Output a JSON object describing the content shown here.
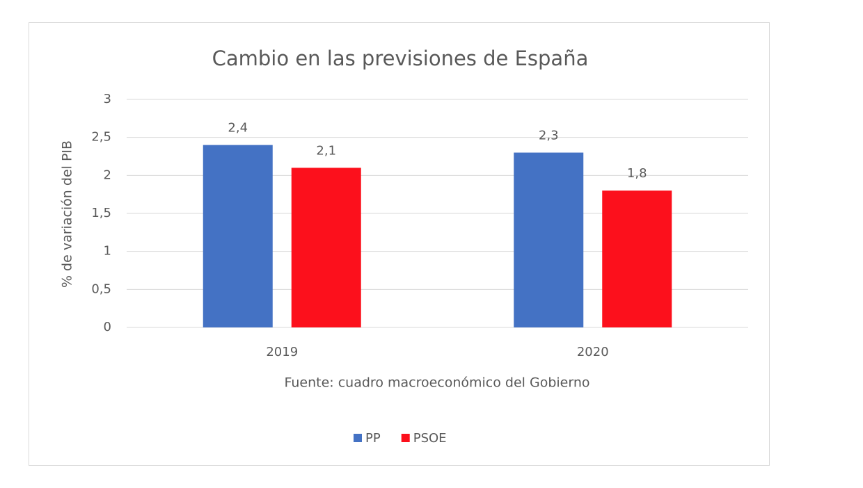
{
  "chart_data": {
    "type": "bar",
    "title": "Cambio en las previsiones de España",
    "x_label": "Fuente: cuadro macroeconómico del Gobierno",
    "y_label": "% de variación del PIB",
    "categories": [
      "2019",
      "2020"
    ],
    "series": [
      {
        "name": "PP",
        "color": "#4472c4",
        "values": [
          2.4,
          2.3
        ],
        "value_labels": [
          "2,4",
          "2,3"
        ]
      },
      {
        "name": "PSOE",
        "color": "#fc101c",
        "values": [
          2.1,
          1.8
        ],
        "value_labels": [
          "2,1",
          "1,8"
        ]
      }
    ],
    "ylim": [
      0,
      3
    ],
    "yticks": [
      0,
      {
        "value": 0.5,
        "label": "0,5"
      },
      1,
      {
        "value": 1.5,
        "label": "1,5"
      },
      2,
      {
        "value": 2.5,
        "label": "2,5"
      },
      3
    ],
    "grid": true,
    "legend": "bottom"
  }
}
